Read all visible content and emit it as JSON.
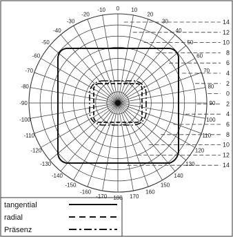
{
  "diagram": {
    "angle_labels": [
      "0",
      "10",
      "20",
      "30",
      "40",
      "50",
      "60",
      "70",
      "80",
      "90",
      "100",
      "110",
      "120",
      "130",
      "140",
      "150",
      "160",
      "170",
      "180",
      "-170",
      "-160",
      "-150",
      "-140",
      "-130",
      "-120",
      "-110",
      "-100",
      "-90",
      "-80",
      "-70",
      "-60",
      "-50",
      "-40",
      "-30",
      "-20",
      "-10"
    ],
    "range_labels": [
      "14",
      "12",
      "10",
      "8",
      "6",
      "4",
      "2",
      "0",
      "2",
      "4",
      "6",
      "8",
      "10",
      "12",
      "14"
    ],
    "legend": {
      "tangential": "tangential",
      "radial": "radial",
      "presence": "Präsenz"
    }
  },
  "colors": {
    "line": "#111111",
    "grid": "#333333",
    "background": "#ffffff"
  }
}
